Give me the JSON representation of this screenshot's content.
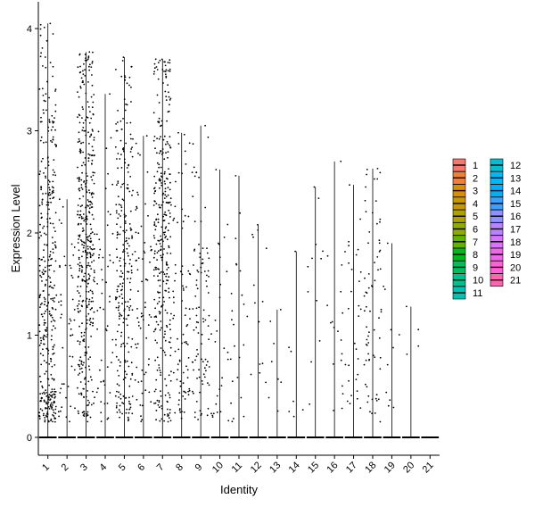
{
  "chart_data": {
    "type": "violin-jitter",
    "xlabel": "Identity",
    "ylabel": "Expression Level",
    "ylim": [
      -0.2,
      4.1
    ],
    "y_ticks": [
      0,
      1,
      2,
      3,
      4
    ],
    "categories": [
      "1",
      "2",
      "3",
      "4",
      "5",
      "6",
      "7",
      "8",
      "9",
      "10",
      "11",
      "12",
      "13",
      "14",
      "15",
      "16",
      "17",
      "18",
      "19",
      "20",
      "21"
    ],
    "max_values": [
      4.05,
      2.33,
      3.77,
      3.36,
      3.72,
      2.95,
      3.7,
      2.98,
      3.05,
      2.62,
      2.56,
      2.08,
      1.25,
      1.82,
      2.45,
      2.7,
      2.47,
      2.63,
      1.9,
      1.28,
      0.0
    ],
    "point_density": [
      380,
      50,
      420,
      55,
      260,
      70,
      330,
      85,
      95,
      28,
      24,
      14,
      8,
      7,
      12,
      18,
      30,
      70,
      11,
      4,
      0
    ],
    "point_center": [
      1.4,
      1.0,
      1.9,
      1.3,
      1.6,
      1.4,
      1.9,
      1.2,
      1.0,
      0.9,
      1.1,
      1.3,
      0.8,
      1.0,
      1.3,
      1.2,
      1.1,
      1.1,
      0.8,
      1.1,
      0
    ],
    "legend": {
      "placement": "right",
      "entries": [
        {
          "label": "1",
          "color": "#F8766D"
        },
        {
          "label": "2",
          "color": "#EC8239"
        },
        {
          "label": "3",
          "color": "#DB8E00"
        },
        {
          "label": "4",
          "color": "#C79800"
        },
        {
          "label": "5",
          "color": "#AEA200"
        },
        {
          "label": "6",
          "color": "#8FAA00"
        },
        {
          "label": "7",
          "color": "#64B200"
        },
        {
          "label": "8",
          "color": "#00B81B"
        },
        {
          "label": "9",
          "color": "#00BD5C"
        },
        {
          "label": "10",
          "color": "#00C08D"
        },
        {
          "label": "11",
          "color": "#00C1B2"
        },
        {
          "label": "12",
          "color": "#00BFD4"
        },
        {
          "label": "13",
          "color": "#00BAF1"
        },
        {
          "label": "14",
          "color": "#00B0F6"
        },
        {
          "label": "15",
          "color": "#3DA1FF"
        },
        {
          "label": "16",
          "color": "#8F91FF"
        },
        {
          "label": "17",
          "color": "#B983FF"
        },
        {
          "label": "18",
          "color": "#D874FD"
        },
        {
          "label": "19",
          "color": "#EF67EB"
        },
        {
          "label": "20",
          "color": "#FD61D3"
        },
        {
          "label": "21",
          "color": "#FF65AE"
        }
      ]
    },
    "grid": false
  }
}
